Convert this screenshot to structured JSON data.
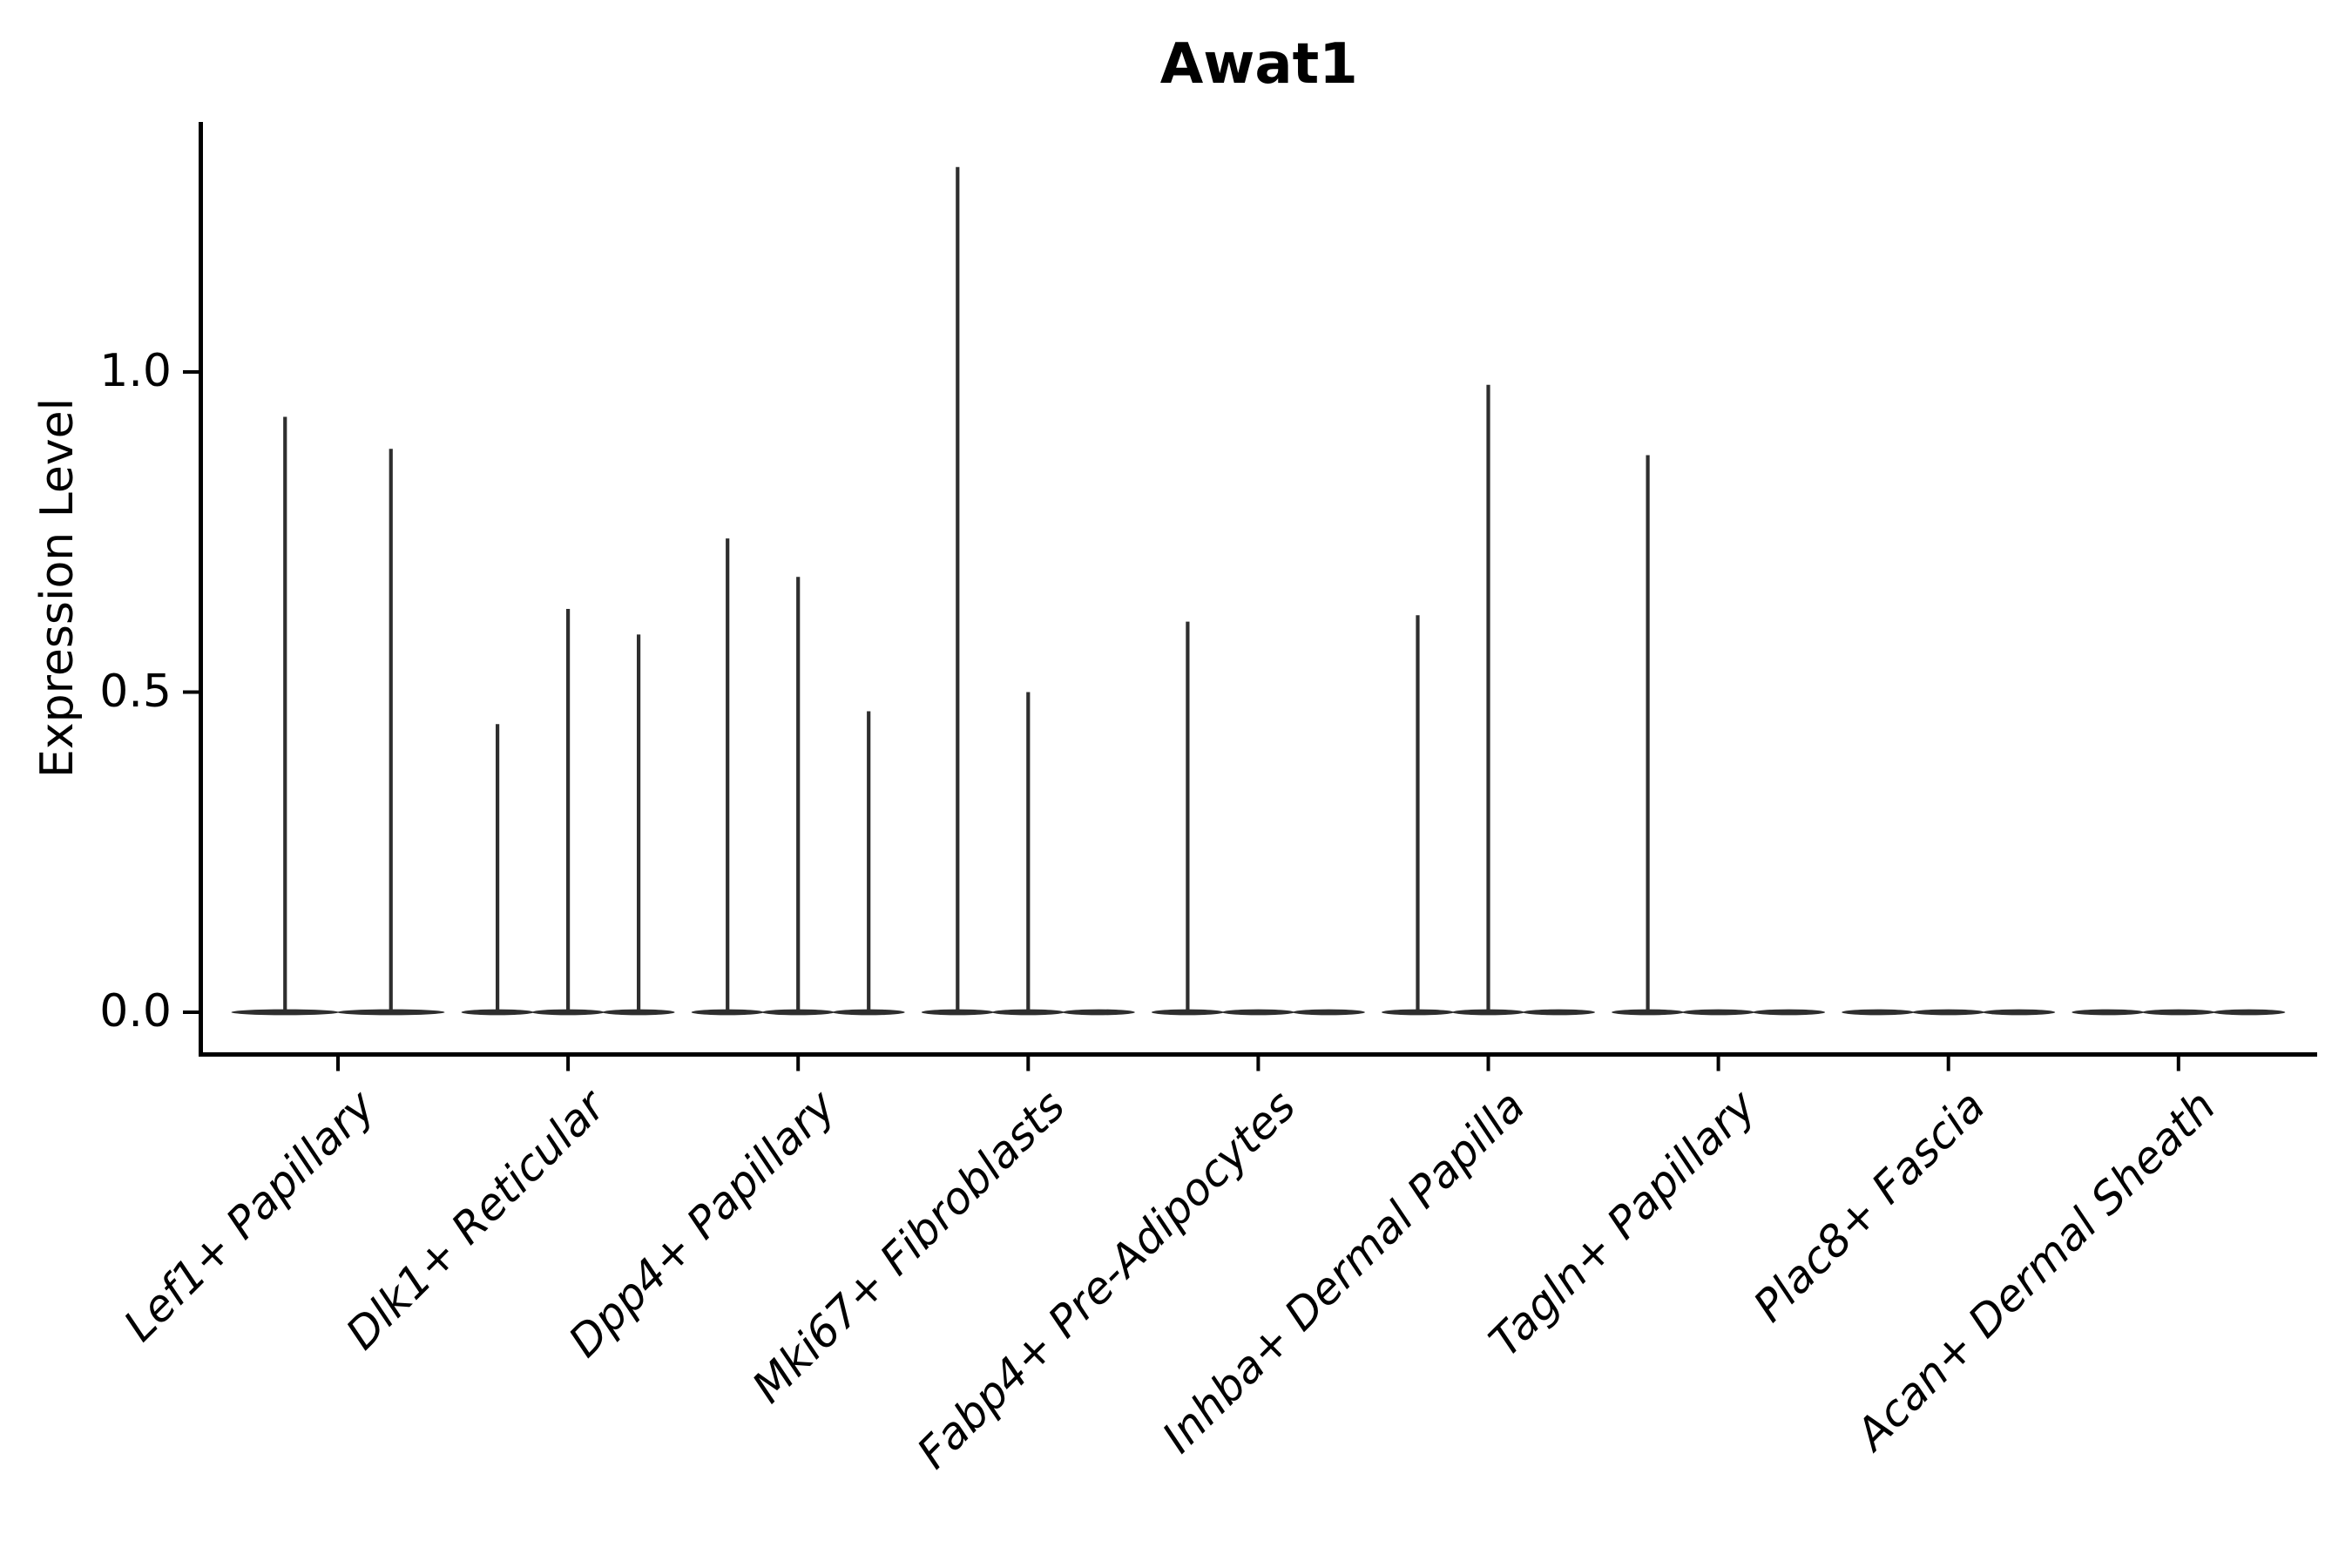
{
  "figure": {
    "background": "#ffffff"
  },
  "chart_data": {
    "type": "violin",
    "title": "Awat1",
    "ylabel": "Expression Level",
    "xlabel": "",
    "grid": false,
    "legend": "none",
    "ylim": [
      -0.065,
      1.37
    ],
    "yticks": [
      {
        "label": "0.0",
        "value": 0.0
      },
      {
        "label": "0.5",
        "value": 0.5
      },
      {
        "label": "1.0",
        "value": 1.0
      }
    ],
    "x_tick_label_style": "italic, rotated 45 degrees, right-anchored",
    "groups": [
      {
        "category": "Lef1+ Papillary",
        "violins": [
          {
            "max": 0.93
          },
          {
            "max": 0.88
          }
        ]
      },
      {
        "category": "Dlk1+ Reticular",
        "violins": [
          {
            "max": 0.45
          },
          {
            "max": 0.63
          },
          {
            "max": 0.59
          }
        ]
      },
      {
        "category": "Dpp4+ Papillary",
        "violins": [
          {
            "max": 0.74
          },
          {
            "max": 0.68
          },
          {
            "max": 0.47
          }
        ]
      },
      {
        "category": "Mki67+ Fibroblasts",
        "violins": [
          {
            "max": 1.32
          },
          {
            "max": 0.5
          },
          {
            "max": 0
          }
        ]
      },
      {
        "category": "Fabp4+ Pre-Adipocytes",
        "violins": [
          {
            "max": 0.61
          },
          {
            "max": 0
          },
          {
            "max": 0
          }
        ]
      },
      {
        "category": "Inhba+ Dermal Papilla",
        "violins": [
          {
            "max": 0.62
          },
          {
            "max": 0.98
          },
          {
            "max": 0
          }
        ]
      },
      {
        "category": "Tagln+ Papillary",
        "violins": [
          {
            "max": 0.87
          },
          {
            "max": 0
          },
          {
            "max": 0
          }
        ]
      },
      {
        "category": "Plac8+ Fascia",
        "violins": [
          {
            "max": 0
          },
          {
            "max": 0
          },
          {
            "max": 0
          }
        ]
      },
      {
        "category": "Acan+ Dermal Sheath",
        "violins": [
          {
            "max": 0
          },
          {
            "max": 0
          },
          {
            "max": 0
          }
        ]
      }
    ],
    "colors": {
      "violin": "#2e2e2e",
      "axis": "#000000",
      "text": "#000000"
    }
  }
}
